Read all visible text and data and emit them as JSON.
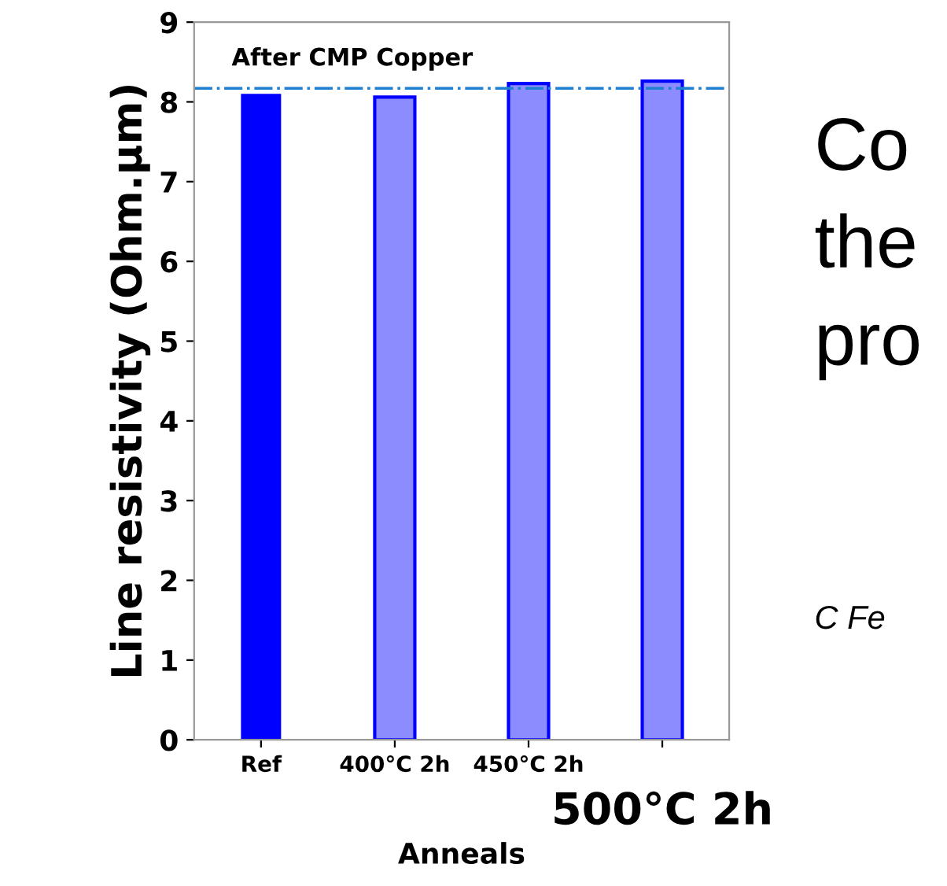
{
  "chart_data": {
    "type": "bar",
    "title": "After CMP Copper",
    "xlabel": "Anneals",
    "ylabel": "Line resistivity (Ohm.µm)",
    "categories": [
      "Ref",
      "400°C 2h",
      "450°C 2h",
      "500°C 2h"
    ],
    "values": [
      8.1,
      8.06,
      8.23,
      8.26
    ],
    "colors": [
      "#0000ff",
      "#8c8cff",
      "#8c8cff",
      "#8c8cff"
    ],
    "ylim": [
      0,
      9
    ],
    "yticks": [
      0,
      1,
      2,
      3,
      4,
      5,
      6,
      7,
      8,
      9
    ],
    "grid": false,
    "legend": false,
    "ref_lines": [
      {
        "axis": "y",
        "value": 8.17,
        "color": "#1f7fd0",
        "line_style": "dashdot"
      }
    ],
    "annotations": [
      "Co",
      "the",
      "pro",
      "C Fe"
    ]
  }
}
